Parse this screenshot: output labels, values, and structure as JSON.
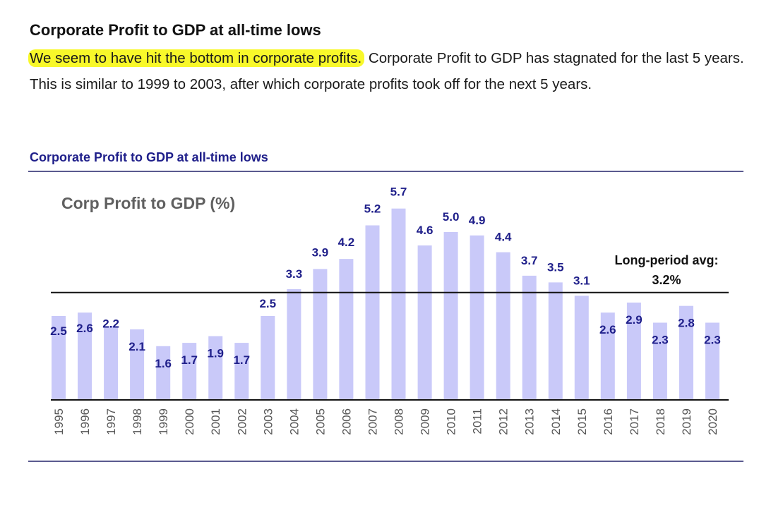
{
  "article": {
    "heading": "Corporate Profit to GDP at all-time lows",
    "highlight": "We seem to have hit the bottom in corporate profits.",
    "body": " Corporate Profit to GDP has stagnated for the last 5 years. This is similar to 1999 to 2003, after which corporate profits took off for the next 5 years."
  },
  "chart_heading": "Corporate Profit to GDP at all-time lows",
  "colors": {
    "bar": "#c9c9f9",
    "label": "#1f1f8a",
    "title": "#606060",
    "highlight": "#f8f82a"
  },
  "chart_data": {
    "type": "bar",
    "title": "Corp Profit to GDP (%)",
    "categories": [
      "1995",
      "1996",
      "1997",
      "1998",
      "1999",
      "2000",
      "2001",
      "2002",
      "2003",
      "2004",
      "2005",
      "2006",
      "2007",
      "2008",
      "2009",
      "2010",
      "2011",
      "2012",
      "2013",
      "2014",
      "2015",
      "2016",
      "2017",
      "2018",
      "2019",
      "2020"
    ],
    "values": [
      2.5,
      2.6,
      2.2,
      2.1,
      1.6,
      1.7,
      1.9,
      1.7,
      2.5,
      3.3,
      3.9,
      4.2,
      5.2,
      5.7,
      4.6,
      5.0,
      4.9,
      4.4,
      3.7,
      3.5,
      3.1,
      2.6,
      2.9,
      2.3,
      2.8,
      2.3
    ],
    "data_labels": [
      "2.5",
      "2.6",
      "2.2",
      "2.1",
      "1.6",
      "1.7",
      "1.9",
      "1.7",
      "2.5",
      "3.3",
      "3.9",
      "4.2",
      "5.2",
      "5.7",
      "4.6",
      "5.0",
      "4.9",
      "4.4",
      "3.7",
      "3.5",
      "3.1",
      "2.6",
      "2.9",
      "2.3",
      "2.8",
      "2.3"
    ],
    "xlabel": "",
    "ylabel": "",
    "ylim": [
      0,
      6
    ],
    "reference_line": {
      "value": 3.2,
      "label_line1": "Long-period avg:",
      "label_line2": "3.2%"
    }
  }
}
